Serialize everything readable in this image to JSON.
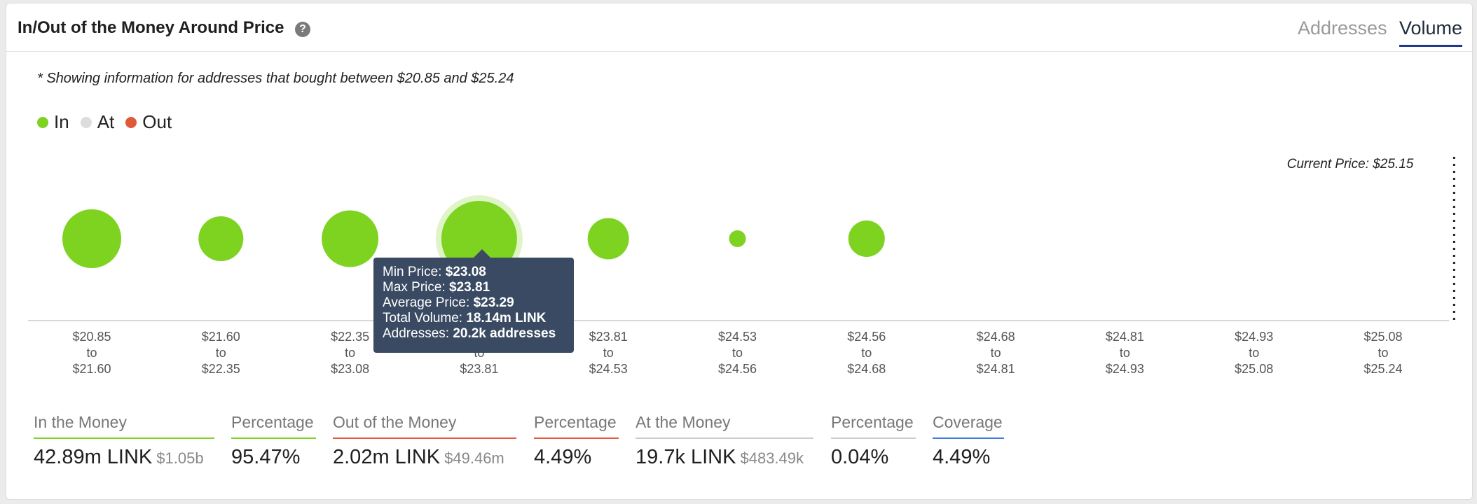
{
  "header": {
    "title": "In/Out of the Money Around Price",
    "help_icon": "?",
    "tabs": [
      {
        "label": "Addresses",
        "active": false
      },
      {
        "label": "Volume",
        "active": true
      }
    ]
  },
  "note": "* Showing information for addresses that bought between $20.85 and $25.24",
  "legend": [
    {
      "label": "In",
      "color": "#7ed321"
    },
    {
      "label": "At",
      "color": "#dddddd"
    },
    {
      "label": "Out",
      "color": "#e05a3a"
    }
  ],
  "chart_data": {
    "type": "scatter",
    "bubble_color": "#7ed321",
    "categories": [
      {
        "from": "$20.85",
        "to_word": "to",
        "to": "$21.60",
        "size": 84
      },
      {
        "from": "$21.60",
        "to_word": "to",
        "to": "$22.35",
        "size": 64
      },
      {
        "from": "$22.35",
        "to_word": "to",
        "to": "$23.08",
        "size": 81
      },
      {
        "from": "$23.08",
        "to_word": "to",
        "to": "$23.81",
        "size": 108
      },
      {
        "from": "$23.81",
        "to_word": "to",
        "to": "$24.53",
        "size": 59
      },
      {
        "from": "$24.53",
        "to_word": "to",
        "to": "$24.56",
        "size": 24
      },
      {
        "from": "$24.56",
        "to_word": "to",
        "to": "$24.68",
        "size": 52
      },
      {
        "from": "$24.68",
        "to_word": "to",
        "to": "$24.81",
        "size": 0
      },
      {
        "from": "$24.81",
        "to_word": "to",
        "to": "$24.93",
        "size": 0
      },
      {
        "from": "$24.93",
        "to_word": "to",
        "to": "$25.08",
        "size": 0
      },
      {
        "from": "$25.08",
        "to_word": "to",
        "to": "$25.24",
        "size": 0
      }
    ],
    "highlighted_index": 3,
    "current_price_label": "Current Price: $25.15",
    "current_price_position": 10.55
  },
  "tooltip": {
    "rows": [
      {
        "label": "Min Price:",
        "value": "$23.08"
      },
      {
        "label": "Max Price:",
        "value": "$23.81"
      },
      {
        "label": "Average Price:",
        "value": "$23.29"
      },
      {
        "label": "Total Volume:",
        "value": "18.14m LINK"
      },
      {
        "label": "Addresses:",
        "value": "20.2k addresses"
      }
    ]
  },
  "stats": [
    {
      "label": "In the Money",
      "value": "42.89m LINK",
      "sub": "$1.05b",
      "color": "#7ed321"
    },
    {
      "label": "Percentage",
      "value": "95.47%",
      "sub": "",
      "color": "#7ed321"
    },
    {
      "label": "Out of the Money",
      "value": "2.02m LINK",
      "sub": "$49.46m",
      "color": "#e05a3a"
    },
    {
      "label": "Percentage",
      "value": "4.49%",
      "sub": "",
      "color": "#e05a3a"
    },
    {
      "label": "At the Money",
      "value": "19.7k LINK",
      "sub": "$483.49k",
      "color": "#cccccc"
    },
    {
      "label": "Percentage",
      "value": "0.04%",
      "sub": "",
      "color": "#cccccc"
    },
    {
      "label": "Coverage",
      "value": "4.49%",
      "sub": "",
      "color": "#3b7ddd"
    }
  ]
}
